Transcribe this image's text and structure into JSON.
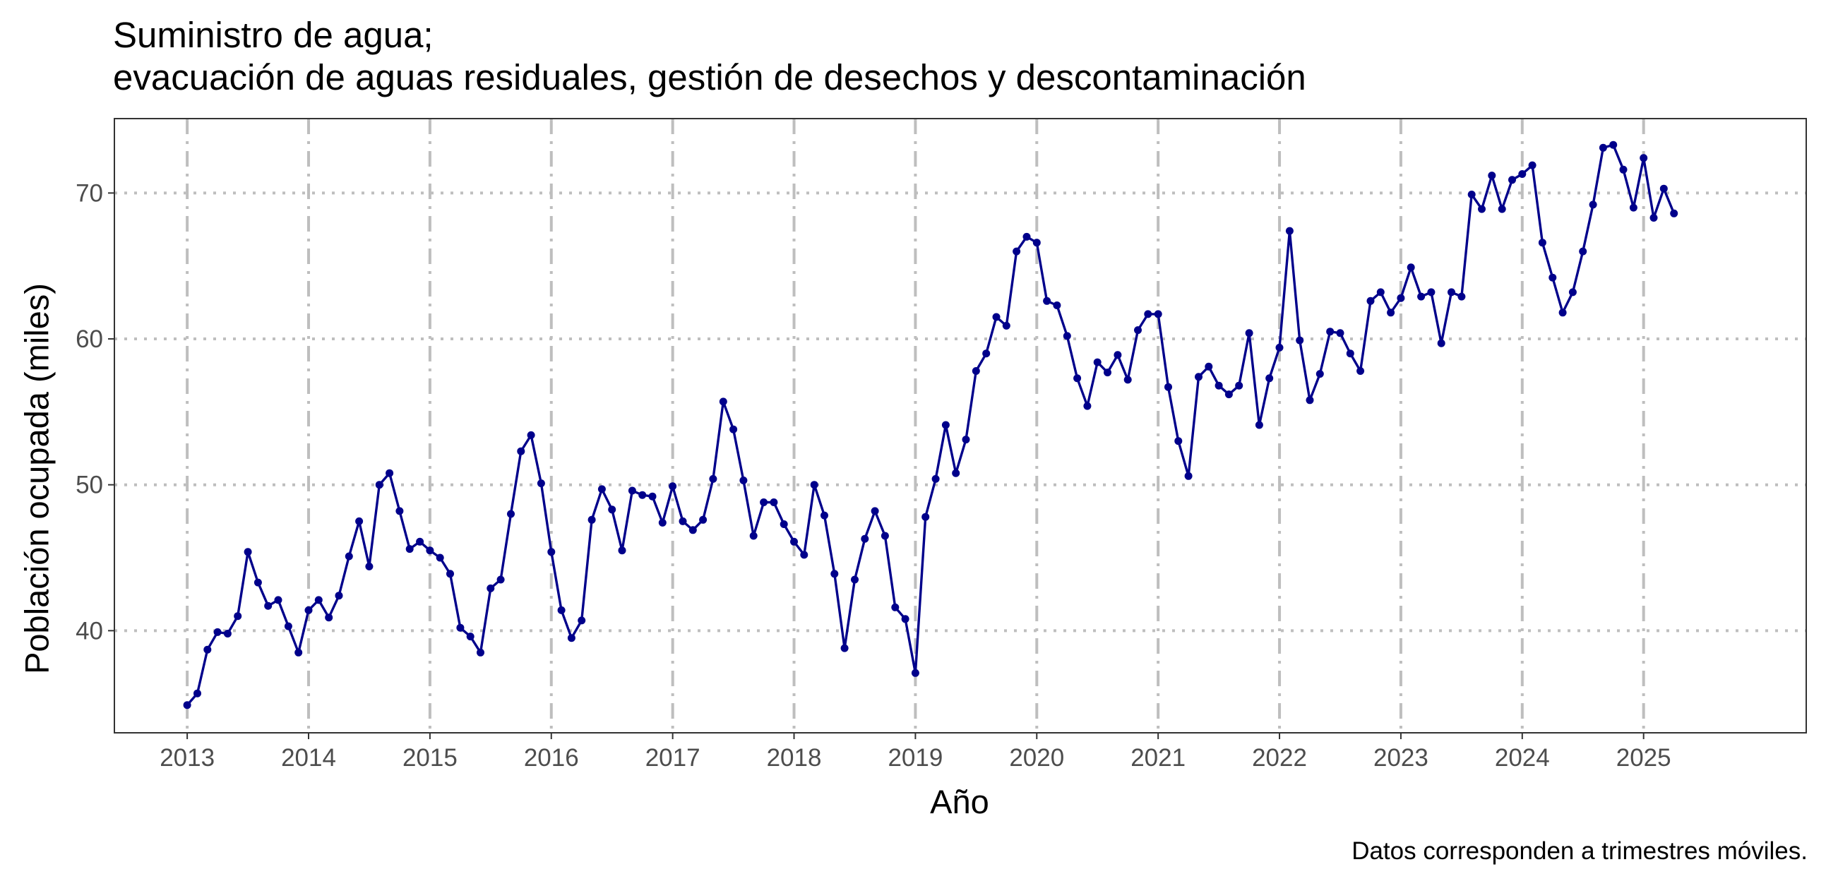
{
  "chart_data": {
    "type": "line",
    "title": "Suministro de agua;",
    "subtitle": "evacuación de aguas residuales, gestión de desechos y descontaminación",
    "xlabel": "Año",
    "ylabel": "Población ocupada (miles)",
    "caption": "Datos corresponden a trimestres móviles.",
    "xlim": [
      2012.4,
      2026.34
    ],
    "ylim": [
      33.0,
      75.1
    ],
    "x_ticks": [
      "2013",
      "2014",
      "2015",
      "2016",
      "2017",
      "2018",
      "2019",
      "2020",
      "2021",
      "2022",
      "2023",
      "2024",
      "2025"
    ],
    "y_ticks": [
      40,
      50,
      60,
      70
    ],
    "grid": true,
    "line_color": "#00008B",
    "grid_color": "#BEBEBE",
    "series": [
      {
        "x_start": 2013,
        "step_months": 1,
        "values": [
          34.9,
          35.7,
          38.7,
          39.9,
          39.8,
          41.0,
          45.4,
          43.3,
          41.7,
          42.1,
          40.3,
          38.5,
          41.4,
          42.1,
          40.9,
          42.4,
          45.1,
          47.5,
          44.4,
          50.0,
          50.8,
          48.2,
          45.6,
          46.1,
          45.5,
          45.0,
          43.9,
          40.2,
          39.6,
          38.5,
          42.9,
          43.5,
          48.0,
          52.3,
          53.4,
          50.1,
          45.4,
          41.4,
          39.5,
          40.7,
          47.6,
          49.7,
          48.3,
          45.5,
          49.6,
          49.3,
          49.2,
          47.4,
          49.9,
          47.5,
          46.9,
          47.6,
          50.4,
          55.7,
          53.8,
          50.3,
          46.5,
          48.8,
          48.8,
          47.3,
          46.1,
          45.2,
          50.0,
          47.9,
          43.9,
          38.8,
          43.5,
          46.3,
          48.2,
          46.5,
          41.6,
          40.8,
          37.1,
          47.8,
          50.4,
          54.1,
          50.8,
          53.1,
          57.8,
          59.0,
          61.5,
          60.9,
          66.0,
          67.0,
          66.6,
          62.6,
          62.3,
          60.2,
          57.3,
          55.4,
          58.4,
          57.7,
          58.9,
          57.2,
          60.6,
          61.7,
          61.7,
          56.7,
          53.0,
          50.6,
          57.4,
          58.1,
          56.8,
          56.2,
          56.8,
          60.4,
          54.1,
          57.3,
          59.4,
          67.4,
          59.9,
          55.8,
          57.6,
          60.5,
          60.4,
          59.0,
          57.8,
          62.6,
          63.2,
          61.8,
          62.8,
          64.9,
          62.9,
          63.2,
          59.7,
          63.2,
          62.9,
          69.9,
          68.9,
          71.2,
          68.9,
          70.9,
          71.3,
          71.9,
          66.6,
          64.2,
          61.8,
          63.2,
          66.0,
          69.2,
          73.1,
          73.3,
          71.6,
          69.0,
          72.4,
          68.3,
          70.3,
          68.6
        ]
      }
    ]
  }
}
